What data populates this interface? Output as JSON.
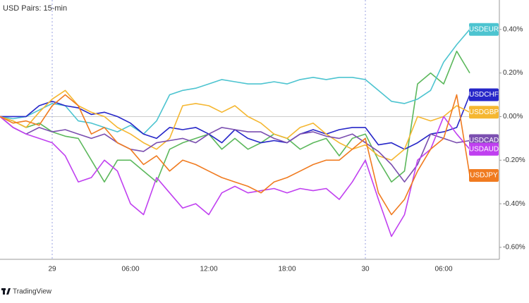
{
  "chart_data": {
    "type": "line",
    "title": "USD Pairs: 15-min",
    "footer": "TradingView",
    "categories": [
      null,
      null,
      null,
      null,
      "29",
      null,
      null,
      null,
      null,
      null,
      "06:00",
      null,
      null,
      null,
      null,
      null,
      "12:00",
      null,
      null,
      null,
      null,
      null,
      "18:00",
      null,
      null,
      null,
      null,
      null,
      "30",
      null,
      null,
      null,
      null,
      null,
      "06:00",
      null,
      null
    ],
    "ylim": [
      -0.655,
      0.535
    ],
    "yticks": [
      {
        "value": 0.4,
        "label": "0.40%"
      },
      {
        "value": 0.2,
        "label": "0.20%"
      },
      {
        "value": 0,
        "label": "0.00%"
      },
      {
        "value": -0.2,
        "label": "-0.20%"
      },
      {
        "value": -0.4,
        "label": "-0.40%"
      },
      {
        "value": -0.6,
        "label": "-0.60%"
      }
    ],
    "series": [
      {
        "color": "#5cb85c",
        "values": [
          0,
          -0.02,
          -0.05,
          -0.03,
          -0.07,
          -0.09,
          -0.1,
          -0.2,
          -0.3,
          -0.2,
          -0.2,
          -0.25,
          -0.3,
          -0.15,
          -0.12,
          -0.1,
          -0.08,
          -0.15,
          -0.1,
          -0.15,
          -0.12,
          -0.08,
          -0.1,
          -0.15,
          -0.12,
          -0.1,
          -0.18,
          -0.1,
          -0.08,
          -0.2,
          -0.3,
          -0.25,
          0.15,
          0.2,
          0.15,
          0.3,
          0.2
        ]
      },
      {
        "name": "USDEUR",
        "color": "#4dc4d0",
        "values": [
          0,
          -0.01,
          0,
          0.03,
          0.06,
          0.05,
          -0.02,
          -0.03,
          -0.05,
          -0.07,
          -0.04,
          -0.08,
          -0.02,
          0.1,
          0.12,
          0.13,
          0.15,
          0.17,
          0.16,
          0.15,
          0.15,
          0.16,
          0.15,
          0.17,
          0.18,
          0.17,
          0.18,
          0.18,
          0.17,
          0.12,
          0.07,
          0.06,
          0.08,
          0.12,
          0.25,
          0.33,
          0.4
        ]
      },
      {
        "name": "USDCHF",
        "color": "#2626c8",
        "values": [
          0,
          0,
          0,
          0.05,
          0.07,
          0.05,
          0.04,
          0.01,
          0.02,
          0,
          -0.03,
          -0.08,
          -0.1,
          -0.05,
          -0.06,
          -0.05,
          -0.08,
          -0.12,
          -0.06,
          -0.1,
          -0.12,
          -0.11,
          -0.12,
          -0.08,
          -0.06,
          -0.08,
          -0.06,
          -0.05,
          -0.05,
          -0.13,
          -0.12,
          -0.15,
          -0.12,
          -0.08,
          -0.07,
          -0.05,
          0.1
        ]
      },
      {
        "name": "USDGBP",
        "color": "#f5b731",
        "values": [
          0,
          -0.02,
          -0.05,
          0.02,
          0.08,
          0.12,
          0.05,
          0.02,
          0,
          -0.05,
          -0.08,
          -0.12,
          -0.15,
          -0.1,
          0.05,
          0.06,
          0.05,
          0.02,
          0.05,
          0,
          -0.03,
          -0.08,
          -0.1,
          -0.05,
          -0.03,
          -0.08,
          -0.12,
          -0.15,
          -0.13,
          -0.18,
          -0.2,
          -0.15,
          0,
          -0.02,
          0,
          0.05,
          0.02
        ]
      },
      {
        "name": "USDCAD",
        "color": "#7b4fb0",
        "values": [
          0,
          -0.05,
          -0.08,
          -0.05,
          -0.07,
          -0.06,
          -0.08,
          -0.1,
          -0.08,
          -0.12,
          -0.15,
          -0.16,
          -0.12,
          -0.11,
          -0.1,
          -0.12,
          -0.08,
          -0.05,
          -0.06,
          -0.07,
          -0.07,
          -0.1,
          -0.12,
          -0.08,
          -0.07,
          -0.09,
          -0.1,
          -0.08,
          -0.12,
          -0.16,
          -0.22,
          -0.3,
          -0.22,
          -0.08,
          -0.1,
          -0.12,
          -0.11
        ]
      },
      {
        "name": "USDAUD",
        "color": "#c040f0",
        "values": [
          0,
          -0.05,
          -0.08,
          -0.1,
          -0.12,
          -0.18,
          -0.3,
          -0.28,
          -0.2,
          -0.25,
          -0.4,
          -0.45,
          -0.28,
          -0.35,
          -0.42,
          -0.4,
          -0.45,
          -0.35,
          -0.32,
          -0.35,
          -0.34,
          -0.33,
          -0.35,
          -0.33,
          -0.34,
          -0.33,
          -0.38,
          -0.3,
          -0.2,
          -0.38,
          -0.55,
          -0.45,
          -0.2,
          -0.15,
          0,
          -0.08,
          -0.15
        ]
      },
      {
        "name": "USDJPY",
        "color": "#f07b20",
        "values": [
          0,
          -0.03,
          -0.02,
          -0.04,
          0.05,
          0.1,
          0.05,
          -0.08,
          -0.05,
          -0.12,
          -0.15,
          -0.22,
          -0.18,
          -0.25,
          -0.2,
          -0.22,
          -0.25,
          -0.28,
          -0.3,
          -0.32,
          -0.35,
          -0.3,
          -0.28,
          -0.25,
          -0.22,
          -0.2,
          -0.2,
          -0.15,
          -0.1,
          -0.35,
          -0.45,
          -0.38,
          -0.25,
          -0.15,
          -0.1,
          0.1,
          -0.27
        ]
      }
    ]
  }
}
